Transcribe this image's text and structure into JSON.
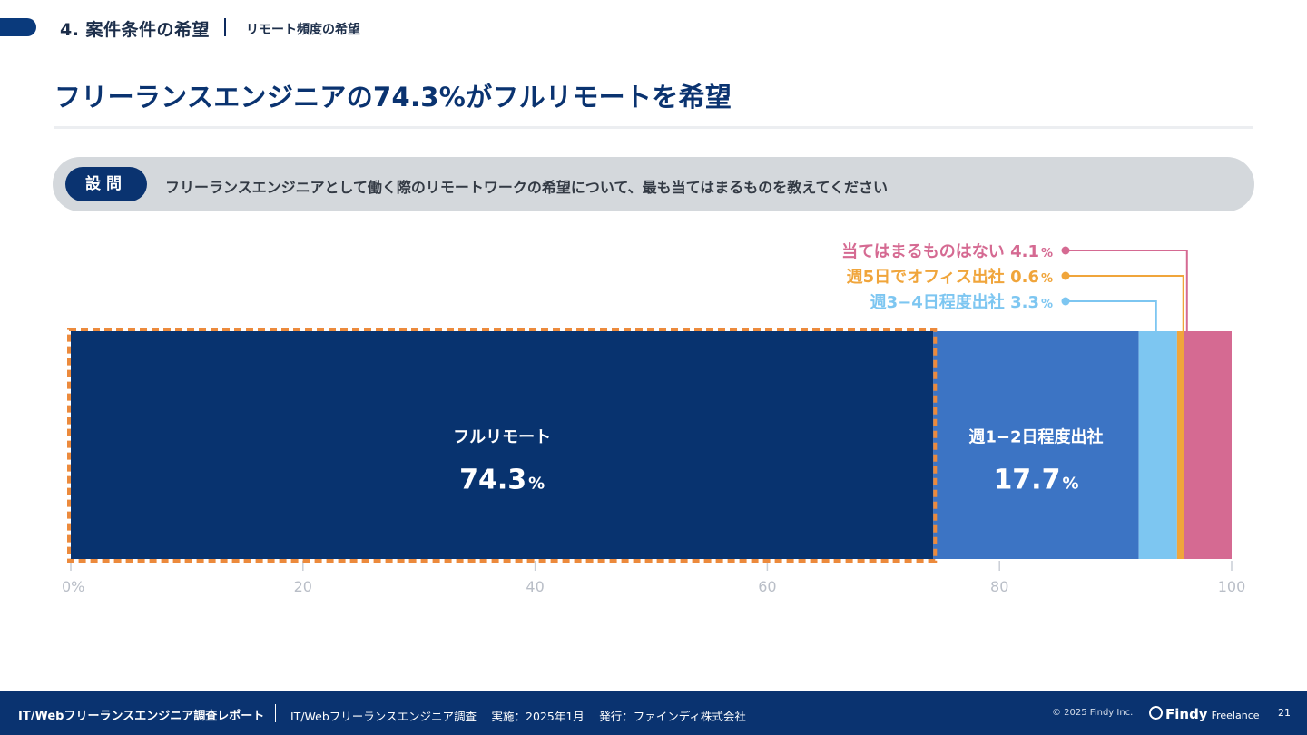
{
  "header": {
    "section": "4. 案件条件の希望",
    "breadcrumb": "リモート頻度の希望"
  },
  "title": "フリーランスエンジニアの74.3%がフルリモートを希望",
  "question": {
    "badge": "設問",
    "text": "フリーランスエンジニアとして働く際のリモートワークの希望について、最も当てはまるものを教えてください"
  },
  "colors": {
    "primary": "#08336f",
    "accent": "#ec8a3c"
  },
  "chart_data": {
    "type": "bar",
    "orientation": "horizontal-stacked-100",
    "xlim": [
      0,
      100
    ],
    "xticks": [
      "0%",
      "20",
      "40",
      "60",
      "80",
      "100"
    ],
    "highlight": "フルリモート",
    "segments": [
      {
        "label": "フルリモート",
        "value": 74.3,
        "display": "74.3",
        "color": "#08336f",
        "placement": "inside"
      },
      {
        "label": "週1−2日程度出社",
        "value": 17.7,
        "display": "17.7",
        "color": "#3c74c4",
        "placement": "inside"
      },
      {
        "label": "週3−4日程度出社",
        "value": 3.3,
        "display": "3.3",
        "color": "#7dc6f1",
        "placement": "callout"
      },
      {
        "label": "週5日でオフィス出社",
        "value": 0.6,
        "display": "0.6",
        "color": "#f0a53b",
        "placement": "callout"
      },
      {
        "label": "当てはまるものはない",
        "value": 4.1,
        "display": "4.1",
        "color": "#d56a92",
        "placement": "callout"
      }
    ],
    "percent_symbol": "%"
  },
  "footer": {
    "report": "IT/Webフリーランスエンジニア調査レポート",
    "survey": "IT/Webフリーランスエンジニア調査　 実施：2025年1月　 発行：ファインディ株式会社",
    "copyright": "© 2025 Findy Inc.",
    "brand": "Findy",
    "brand_sub": "Freelance",
    "page": "21"
  }
}
